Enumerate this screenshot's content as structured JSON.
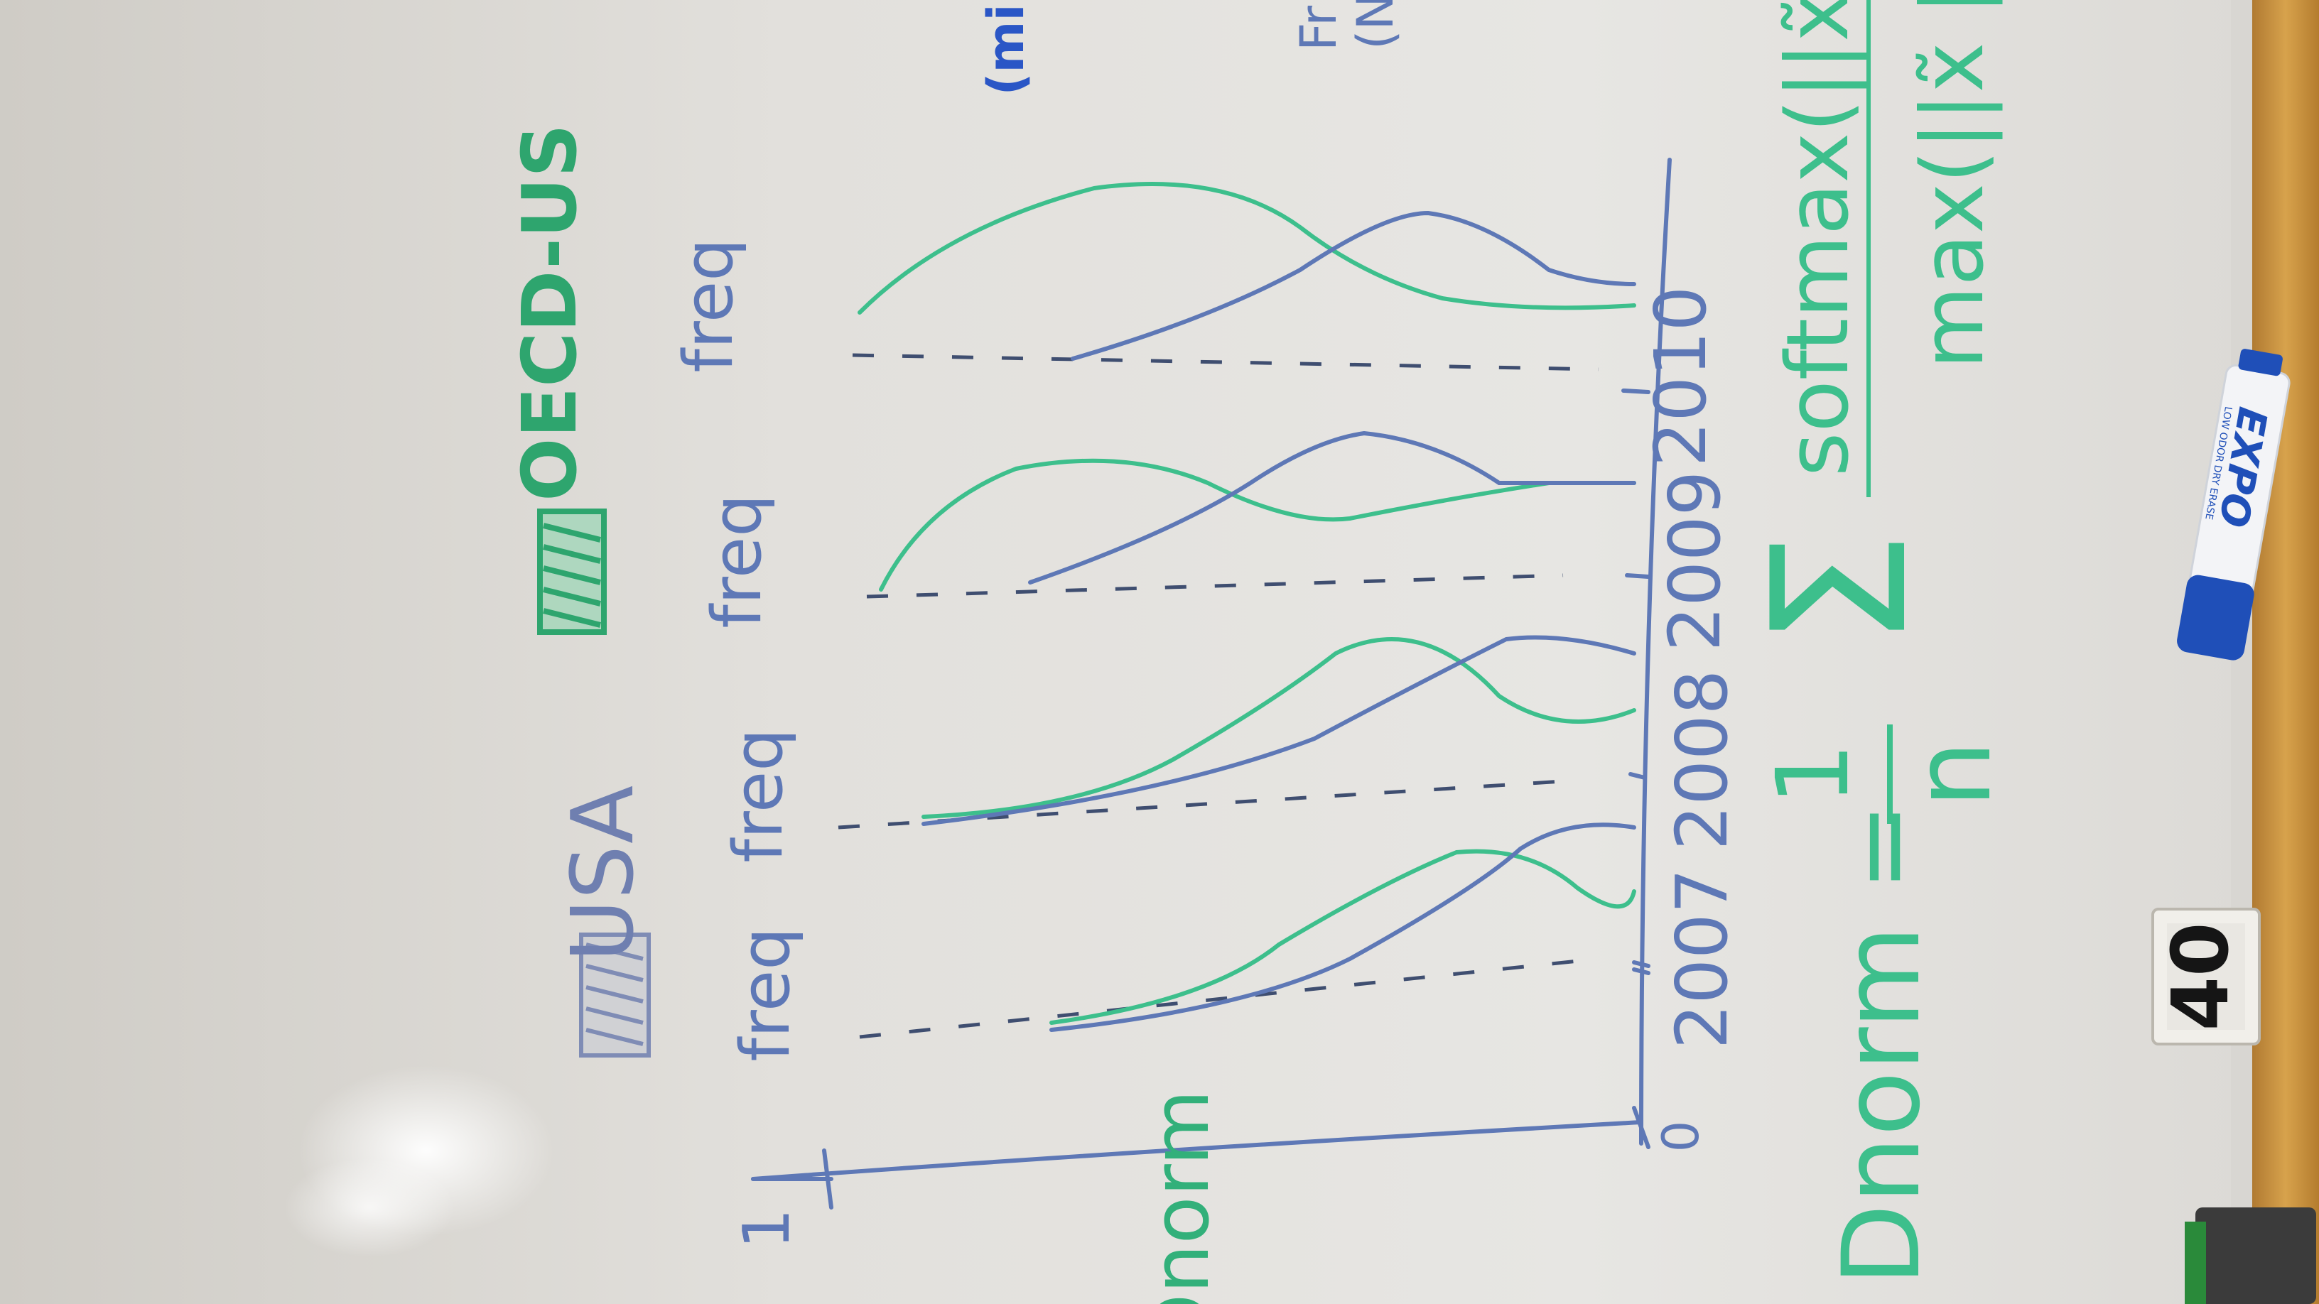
{
  "whiteboard": {
    "legend": {
      "usa_label": "USA",
      "oecd_label": "OECD-US"
    },
    "axis": {
      "y_label": "Dnorm",
      "origin_label": "0",
      "tick_top_label": "1"
    },
    "panels": [
      {
        "year": "2007",
        "freq_label": "freq"
      },
      {
        "year": "2008",
        "freq_label": "freq"
      },
      {
        "year": "2009",
        "freq_label": "freq"
      },
      {
        "year": "2010",
        "freq_label": "freq"
      }
    ],
    "formula": {
      "lhs": "Dnorm =",
      "fraction_num": "1",
      "fraction_den": "n",
      "sum_symbol": "Σ",
      "numerator": "softmax(||x̃ ||",
      "denominator": "max(||x̃ ||"
    },
    "corner_notes": [
      "(mi",
      "Fr",
      "(N"
    ],
    "marker": {
      "brand": "EXPO",
      "subtext": "LOW ODOR DRY ERASE"
    },
    "room_tag": "40"
  },
  "colors": {
    "board": "#e4e2de",
    "blue_ink": "#4a6bb0",
    "teal_ink": "#3dbf8c",
    "frame": "#c8913f",
    "marker_blue": "#1f4fb8"
  }
}
